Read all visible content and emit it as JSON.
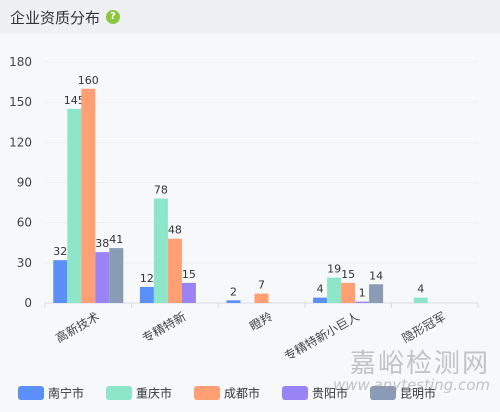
{
  "header": {
    "title": "企业资质分布",
    "help_icon": "question-circle-icon",
    "help_glyph": "?"
  },
  "watermark": {
    "text": "嘉峪检测网",
    "url": "www.anytesting.com"
  },
  "chart_data": {
    "type": "bar",
    "categories": [
      "高新技术",
      "专精特新",
      "瞪羚",
      "专精特新小巨人",
      "隐形冠军"
    ],
    "series": [
      {
        "name": "南宁市",
        "color": "#5b8ff9",
        "values": [
          32,
          12,
          2,
          4,
          null
        ]
      },
      {
        "name": "重庆市",
        "color": "#8ee6c8",
        "values": [
          145,
          78,
          null,
          19,
          4
        ]
      },
      {
        "name": "成都市",
        "color": "#ff9f73",
        "values": [
          160,
          48,
          7,
          15,
          null
        ]
      },
      {
        "name": "贵阳市",
        "color": "#9a83f5",
        "values": [
          38,
          15,
          null,
          1,
          null
        ]
      },
      {
        "name": "昆明市",
        "color": "#8a9bb5",
        "values": [
          41,
          null,
          null,
          14,
          null
        ]
      }
    ],
    "yticks": [
      0,
      30,
      60,
      90,
      120,
      150,
      180
    ],
    "ylim": [
      0,
      180
    ],
    "grid": true,
    "legend_position": "bottom-left"
  }
}
